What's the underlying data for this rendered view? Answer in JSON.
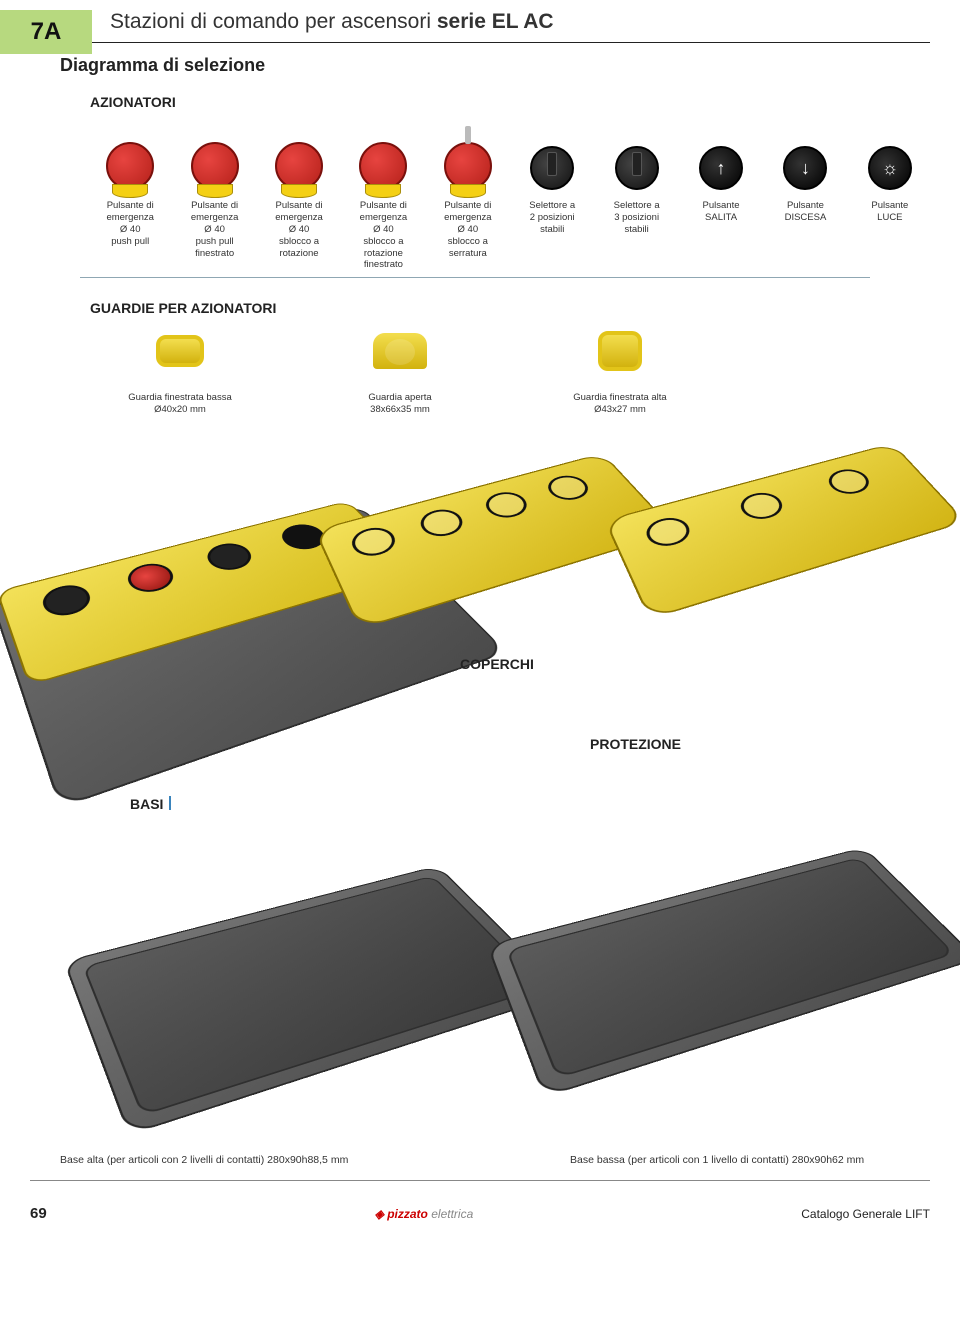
{
  "tab": "7A",
  "title_plain": "Stazioni di comando per ascensori ",
  "title_bold": "serie EL AC",
  "subtitle": "Diagramma di selezione",
  "section_actuators": "AZIONATORI",
  "actuators": [
    {
      "type": "estop",
      "caption": "Pulsante di\nemergenza\nØ 40\npush pull"
    },
    {
      "type": "estop",
      "caption": "Pulsante di\nemergenza\nØ 40\npush pull\nfinestrato"
    },
    {
      "type": "estop",
      "caption": "Pulsante di\nemergenza\nØ 40\nsblocco a\nrotazione"
    },
    {
      "type": "estop",
      "caption": "Pulsante di\nemergenza\nØ 40\nsblocco a\nrotazione\nfinestrato"
    },
    {
      "type": "estop_key",
      "caption": "Pulsante di\nemergenza\nØ 40\nsblocco a\nserratura"
    },
    {
      "type": "selector",
      "caption": "Selettore a\n2 posizioni\nstabili"
    },
    {
      "type": "selector",
      "caption": "Selettore a\n3 posizioni\nstabili"
    },
    {
      "type": "push_up",
      "glyph": "↑",
      "caption": "Pulsante\nSALITA"
    },
    {
      "type": "push_down",
      "glyph": "↓",
      "caption": "Pulsante\nDISCESA"
    },
    {
      "type": "push_light",
      "glyph": "☼",
      "caption": "Pulsante\nLUCE"
    }
  ],
  "section_guards": "GUARDIE PER AZIONATORI",
  "guards": [
    {
      "caption": "Guardia finestrata bassa\nØ40x20 mm"
    },
    {
      "caption": "Guardia aperta\n38x66x35 mm"
    },
    {
      "caption": "Guardia finestrata alta\nØ43x27 mm"
    }
  ],
  "label_coperchi": "COPERCHI",
  "label_protezione": "PROTEZIONE",
  "label_basi": "BASI",
  "bases": [
    {
      "caption": "Base alta (per articoli con 2 livelli di contatti)\n280x90h88,5 mm"
    },
    {
      "caption": "Base bassa (per articoli con 1 livello di contatti)\n280x90h62 mm"
    }
  ],
  "footer": {
    "page": "69",
    "brand": "pizzato",
    "brand_sub": "elettrica",
    "catalog": "Catalogo Generale LIFT"
  },
  "colors": {
    "tab_bg": "#b7d97f",
    "yellow": "#e9cf20",
    "red": "#d4281e",
    "grey": "#5a5a5a",
    "line": "#8fa7b3"
  }
}
